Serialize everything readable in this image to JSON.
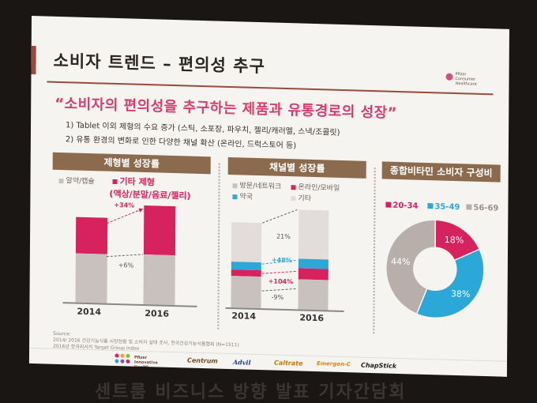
{
  "slide": {
    "title": "소비자 트렌드 – 편의성 추구",
    "logo_text": "Pfizer Consumer Healthcare",
    "quote": "“소비자의 편의성을 추구하는 제품과 유통경로의 성장”",
    "bullets": [
      "1) Tablet 이외 제형의 수요 증가 (스틱, 소포장, 파우치, 젤리/캐러멜, 스낵/조콜릿)",
      "2) 유통 환경의 변화로 인한 다양한 채널 확산 (온라인, 드럭스토어 등)"
    ]
  },
  "panel1": {
    "header": "제형별 성장률",
    "legend_tablet": "알약/캡슐",
    "legend_other": "기타 제형",
    "legend_other_detail": "(액상/분말/음료/젤리)",
    "label_other_growth": "+34%",
    "label_tablet_growth": "+6%",
    "years": [
      "2014",
      "2016"
    ]
  },
  "panel2": {
    "header": "채널별 성장률",
    "legend_items": [
      "방문/네트워크",
      "온라인/모바일",
      "약국",
      "기타"
    ],
    "label_other": "21%",
    "label_pharmacy": "+48%",
    "label_online": "+104%",
    "label_door": "-9%",
    "years": [
      "2014",
      "2016"
    ]
  },
  "panel3": {
    "header": "종합비타민 소비자 구성비",
    "legend": [
      "20-34",
      "35-49",
      "56-69"
    ],
    "slices": [
      "18%",
      "38%",
      "44%"
    ]
  },
  "source": [
    "Source:",
    "2014/ 2016 건강기능식품 시장현황 및 소비자 실태 조사, 한국건강기능식품협회 (N=1511)",
    "2016년 한국리서치 Target Group Index"
  ],
  "brands": [
    "Pfizer Innovative Health",
    "Centrum",
    "Advil",
    "Caltrate",
    "Emergen-C",
    "ChapStick"
  ],
  "background_caption": "센트룸 비즈니스 방향 발표 기자간담회",
  "colors": {
    "accent": "#d6225e",
    "header": "#8b6a4e",
    "grey": "#c9c1be",
    "blue": "#2ba7d8"
  },
  "chart_data": [
    {
      "type": "bar",
      "title": "제형별 성장률",
      "categories": [
        "2014",
        "2016"
      ],
      "series": [
        {
          "name": "알약/캡슐",
          "values": [
            38,
            40
          ]
        },
        {
          "name": "기타 제형",
          "values": [
            28,
            37
          ]
        }
      ],
      "annotations": [
        "+34%",
        "+6%"
      ]
    },
    {
      "type": "bar",
      "title": "채널별 성장률",
      "categories": [
        "2014",
        "2016"
      ],
      "series": [
        {
          "name": "방문/네트워크",
          "values": [
            40,
            37
          ]
        },
        {
          "name": "온라인/모바일",
          "values": [
            7,
            14
          ]
        },
        {
          "name": "약국",
          "values": [
            9,
            13
          ]
        },
        {
          "name": "기타",
          "values": [
            47,
            57
          ]
        }
      ],
      "annotations": [
        "21%",
        "+48%",
        "+104%",
        "-9%"
      ]
    },
    {
      "type": "pie",
      "title": "종합비타민 소비자 구성비",
      "categories": [
        "20-34",
        "35-49",
        "56-69"
      ],
      "values": [
        18,
        38,
        44
      ]
    }
  ]
}
